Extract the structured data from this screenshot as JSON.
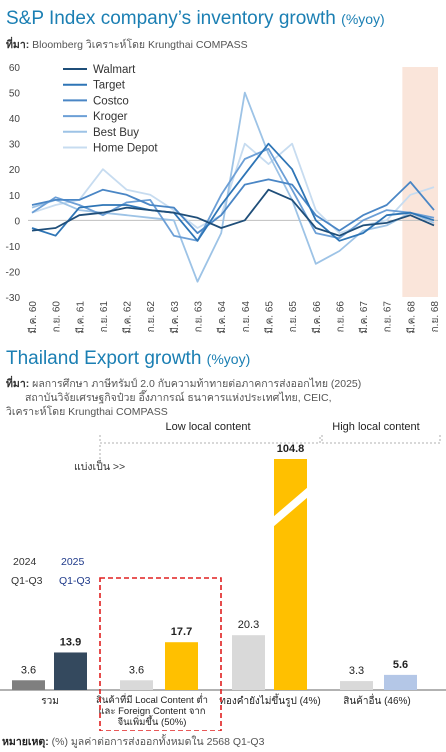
{
  "section1": {
    "title": "S&P Index company’s inventory growth",
    "unit": "(%yoy)",
    "source_label": "ที่มา:",
    "source_text": "Bloomberg วิเคราะห์โดย Krungthai COMPASS"
  },
  "section2": {
    "title": "Thailand Export growth",
    "unit": "(%yoy)",
    "source_label": "ที่มา:",
    "source_lines": [
      "ผลการศึกษา ภาษีทรัมป์ 2.0 กับความท้าทายต่อภาคการส่งออกไทย (2025)",
      "สถาบันวิจัยเศรษฐกิจป๋วย อึ๊งภากรณ์ ธนาคารแห่งประเทศไทย, CEIC,",
      "วิเคราะห์โดย Krungthai COMPASS"
    ]
  },
  "footnote": {
    "label": "หมายเหตุ:",
    "text": "(%) มูลค่าต่อการส่งออกทั้งหมดใน 2568 Q1-Q3"
  },
  "colors": {
    "title": "#1b7fb3",
    "highlight_band": "#fae5da",
    "bar_2024": "#7f7f7f",
    "bar_2025": "#34495e",
    "bar_light": "#d9d9d9",
    "bar_gold": "#ffc000",
    "bar_blue_light": "#b4c7e7",
    "dash_red": "#e02020"
  },
  "chart_data": [
    {
      "type": "line",
      "x": [
        "มี.ค. 60",
        "ก.ย. 60",
        "มี.ค. 61",
        "ก.ย. 61",
        "มี.ค. 62",
        "ก.ย. 62",
        "มี.ค. 63",
        "ก.ย. 63",
        "มี.ค. 64",
        "ก.ย. 64",
        "มี.ค. 65",
        "ก.ย. 65",
        "มี.ค. 66",
        "ก.ย. 66",
        "มี.ค. 67",
        "ก.ย. 67",
        "มี.ค. 68",
        "ก.ย. 68"
      ],
      "ylim": [
        -30,
        60
      ],
      "yticks": [
        -30,
        -20,
        -10,
        0,
        10,
        20,
        30,
        40,
        50,
        60
      ],
      "highlight_range": [
        "มี.ค. 68",
        "ก.ย. 68"
      ],
      "series": [
        {
          "name": "Walmart",
          "color": "#1f4e79",
          "values": [
            -4,
            -3,
            2,
            3,
            5,
            4,
            3,
            1,
            -3,
            0,
            12,
            8,
            -3,
            -6,
            -2,
            -1,
            2,
            -2
          ]
        },
        {
          "name": "Target",
          "color": "#2e75b6",
          "values": [
            -3,
            -6,
            5,
            6,
            6,
            4,
            3,
            -8,
            6,
            18,
            30,
            20,
            0,
            -8,
            -5,
            2,
            3,
            0
          ]
        },
        {
          "name": "Costco",
          "color": "#4a86c5",
          "values": [
            6,
            8,
            8,
            12,
            10,
            6,
            5,
            -5,
            2,
            14,
            16,
            14,
            2,
            -4,
            2,
            6,
            15,
            4
          ]
        },
        {
          "name": "Kroger",
          "color": "#6c9fd6",
          "values": [
            3,
            9,
            6,
            2,
            7,
            8,
            -6,
            -8,
            10,
            24,
            28,
            12,
            -5,
            -7,
            0,
            4,
            3,
            1
          ]
        },
        {
          "name": "Best Buy",
          "color": "#9dc3e6",
          "values": [
            5,
            8,
            4,
            3,
            2,
            1,
            0,
            -24,
            -5,
            50,
            26,
            8,
            -17,
            -12,
            -4,
            -2,
            3,
            -1
          ]
        },
        {
          "name": "Home Depot",
          "color": "#c7dcf0",
          "values": [
            3,
            6,
            8,
            20,
            12,
            10,
            4,
            -3,
            2,
            30,
            22,
            30,
            4,
            -5,
            -2,
            0,
            10,
            13
          ]
        }
      ]
    },
    {
      "type": "bar",
      "legend": {
        "year_a": "2024",
        "period_a": "Q1-Q3",
        "year_b": "2025",
        "period_b": "Q1-Q3"
      },
      "split_label": "แบ่งเป็น >>",
      "group_headers": {
        "low": "Low local content",
        "high": "High local content"
      },
      "axis_break_value": 104.8,
      "groups": [
        {
          "label": "รวม",
          "values": [
            3.6,
            13.9
          ],
          "colors": [
            "#7f7f7f",
            "#34495e"
          ]
        },
        {
          "label": "สินค้าที่มี Local Content ต่ำ และ Foreign Content จากจีนเพิ่มขึ้น (50%)",
          "label_lines": [
            "สินค้าที่มี Local Content ต่ำ",
            "และ Foreign Content จาก",
            "จีนเพิ่มขึ้น (50%)"
          ],
          "values": [
            3.6,
            17.7
          ],
          "colors": [
            "#d9d9d9",
            "#ffc000"
          ]
        },
        {
          "label": "ทองคำยังไม่ขึ้นรูป (4%)",
          "values": [
            20.3,
            104.8
          ],
          "colors": [
            "#d9d9d9",
            "#ffc000"
          ]
        },
        {
          "label": "สินค้าอื่น (46%)",
          "values": [
            3.3,
            5.6
          ],
          "colors": [
            "#d9d9d9",
            "#b4c7e7"
          ]
        }
      ]
    }
  ]
}
